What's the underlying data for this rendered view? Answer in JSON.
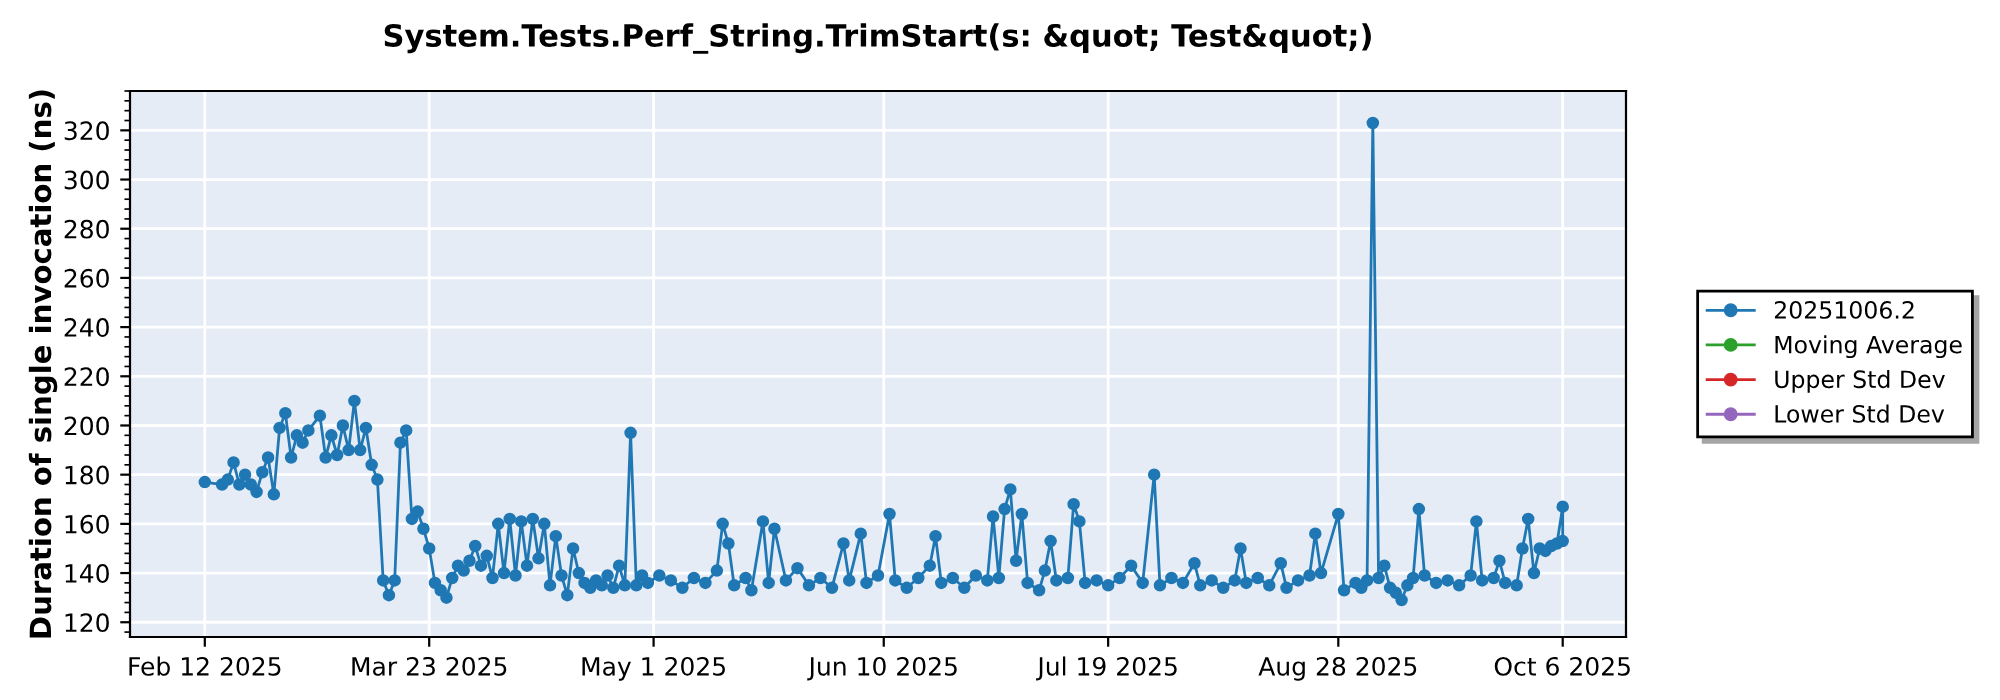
{
  "chart_data": {
    "type": "line",
    "title": "System.Tests.Perf_String.TrimStart(s: &quot; Test&quot;)",
    "ylabel": "Duration of single invocation (ns)",
    "x": [
      "2025-02-12",
      "2025-02-15",
      "2025-02-16",
      "2025-02-17",
      "2025-02-18",
      "2025-02-19",
      "2025-02-20",
      "2025-02-21",
      "2025-02-22",
      "2025-02-23",
      "2025-02-24",
      "2025-02-25",
      "2025-02-26",
      "2025-02-27",
      "2025-02-28",
      "2025-03-01",
      "2025-03-02",
      "2025-03-04",
      "2025-03-05",
      "2025-03-06",
      "2025-03-07",
      "2025-03-08",
      "2025-03-09",
      "2025-03-10",
      "2025-03-11",
      "2025-03-12",
      "2025-03-13",
      "2025-03-14",
      "2025-03-15",
      "2025-03-16",
      "2025-03-17",
      "2025-03-18",
      "2025-03-19",
      "2025-03-20",
      "2025-03-21",
      "2025-03-22",
      "2025-03-23",
      "2025-03-24",
      "2025-03-25",
      "2025-03-26",
      "2025-03-27",
      "2025-03-28",
      "2025-03-29",
      "2025-03-30",
      "2025-03-31",
      "2025-04-01",
      "2025-04-02",
      "2025-04-03",
      "2025-04-04",
      "2025-04-05",
      "2025-04-06",
      "2025-04-07",
      "2025-04-08",
      "2025-04-09",
      "2025-04-10",
      "2025-04-11",
      "2025-04-12",
      "2025-04-13",
      "2025-04-14",
      "2025-04-15",
      "2025-04-16",
      "2025-04-17",
      "2025-04-18",
      "2025-04-19",
      "2025-04-20",
      "2025-04-21",
      "2025-04-22",
      "2025-04-23",
      "2025-04-24",
      "2025-04-25",
      "2025-04-26",
      "2025-04-27",
      "2025-04-28",
      "2025-04-29",
      "2025-04-30",
      "2025-05-02",
      "2025-05-04",
      "2025-05-06",
      "2025-05-08",
      "2025-05-10",
      "2025-05-12",
      "2025-05-13",
      "2025-05-14",
      "2025-05-15",
      "2025-05-17",
      "2025-05-18",
      "2025-05-20",
      "2025-05-21",
      "2025-05-22",
      "2025-05-24",
      "2025-05-26",
      "2025-05-28",
      "2025-05-30",
      "2025-06-01",
      "2025-06-03",
      "2025-06-04",
      "2025-06-06",
      "2025-06-07",
      "2025-06-09",
      "2025-06-11",
      "2025-06-12",
      "2025-06-14",
      "2025-06-16",
      "2025-06-18",
      "2025-06-19",
      "2025-06-20",
      "2025-06-22",
      "2025-06-24",
      "2025-06-26",
      "2025-06-28",
      "2025-06-29",
      "2025-06-30",
      "2025-07-01",
      "2025-07-02",
      "2025-07-03",
      "2025-07-04",
      "2025-07-05",
      "2025-07-07",
      "2025-07-08",
      "2025-07-09",
      "2025-07-10",
      "2025-07-12",
      "2025-07-13",
      "2025-07-14",
      "2025-07-15",
      "2025-07-17",
      "2025-07-19",
      "2025-07-21",
      "2025-07-23",
      "2025-07-25",
      "2025-07-27",
      "2025-07-28",
      "2025-07-30",
      "2025-08-01",
      "2025-08-03",
      "2025-08-04",
      "2025-08-06",
      "2025-08-08",
      "2025-08-10",
      "2025-08-11",
      "2025-08-12",
      "2025-08-14",
      "2025-08-16",
      "2025-08-18",
      "2025-08-19",
      "2025-08-21",
      "2025-08-23",
      "2025-08-24",
      "2025-08-25",
      "2025-08-28",
      "2025-08-29",
      "2025-08-31",
      "2025-09-01",
      "2025-09-02",
      "2025-09-03",
      "2025-09-04",
      "2025-09-05",
      "2025-09-06",
      "2025-09-07",
      "2025-09-08",
      "2025-09-09",
      "2025-09-10",
      "2025-09-11",
      "2025-09-12",
      "2025-09-14",
      "2025-09-16",
      "2025-09-18",
      "2025-09-20",
      "2025-09-21",
      "2025-09-22",
      "2025-09-24",
      "2025-09-25",
      "2025-09-26",
      "2025-09-28",
      "2025-09-29",
      "2025-09-30",
      "2025-10-01",
      "2025-10-02",
      "2025-10-03",
      "2025-10-04",
      "2025-10-05",
      "2025-10-06",
      "2025-10-06"
    ],
    "series": [
      {
        "name": "20251006.2",
        "color": "#1f77b4",
        "values": [
          177,
          176,
          178,
          185,
          176,
          180,
          176,
          173,
          181,
          187,
          172,
          199,
          205,
          187,
          196,
          193,
          198,
          204,
          187,
          196,
          188,
          200,
          190,
          210,
          190,
          199,
          184,
          178,
          137,
          131,
          137,
          193,
          198,
          162,
          165,
          158,
          150,
          136,
          133,
          130,
          138,
          143,
          141,
          145,
          151,
          143,
          147,
          138,
          160,
          140,
          162,
          139,
          161,
          143,
          162,
          146,
          160,
          135,
          155,
          139,
          131,
          150,
          140,
          136,
          134,
          137,
          135,
          139,
          134,
          143,
          135,
          197,
          135,
          139,
          136,
          139,
          137,
          134,
          138,
          136,
          141,
          160,
          152,
          135,
          138,
          133,
          161,
          136,
          158,
          137,
          142,
          135,
          138,
          134,
          152,
          137,
          156,
          136,
          139,
          164,
          137,
          134,
          138,
          143,
          155,
          136,
          138,
          134,
          139,
          137,
          163,
          138,
          166,
          174,
          145,
          164,
          136,
          133,
          141,
          153,
          137,
          138,
          168,
          161,
          136,
          137,
          135,
          138,
          143,
          136,
          180,
          135,
          138,
          136,
          144,
          135,
          137,
          134,
          137,
          150,
          136,
          138,
          135,
          144,
          134,
          137,
          139,
          156,
          140,
          164,
          133,
          136,
          134,
          137,
          323,
          138,
          143,
          134,
          132,
          129,
          135,
          138,
          166,
          139,
          136,
          137,
          135,
          139,
          161,
          137,
          138,
          145,
          136,
          135,
          150,
          162,
          140,
          150,
          149,
          151,
          152,
          167,
          153
        ]
      },
      {
        "name": "Moving Average",
        "color": "#2ca02c",
        "values": [
          null,
          null,
          null,
          null,
          null,
          null,
          null,
          null,
          null,
          null,
          null,
          null,
          null,
          null,
          null,
          null,
          null,
          null,
          null,
          null,
          null,
          null,
          null,
          null,
          null,
          null,
          null,
          null,
          null,
          null,
          null,
          null,
          null,
          null,
          null,
          null,
          null,
          null,
          null,
          null,
          null,
          null,
          null,
          null,
          null,
          null,
          null,
          null,
          null,
          null,
          null,
          null,
          null,
          null,
          null,
          null,
          null,
          null,
          null,
          null,
          null,
          null,
          null,
          null,
          null,
          null,
          null,
          null,
          null,
          null,
          null,
          null,
          null,
          null,
          null,
          null,
          null,
          null,
          null,
          null,
          null,
          null,
          null,
          null,
          null,
          null,
          null,
          null,
          null,
          null,
          null,
          null,
          null,
          null,
          null,
          null,
          null,
          null,
          null,
          null,
          null,
          null,
          null,
          null,
          null,
          null,
          null,
          null,
          null,
          null,
          null,
          null,
          null,
          null,
          null,
          null,
          null,
          null,
          null,
          null,
          null,
          null,
          null,
          null,
          null,
          null,
          null,
          null,
          null,
          null,
          null,
          null,
          null,
          null,
          null,
          null,
          null,
          null,
          null,
          null,
          null,
          null,
          null,
          null,
          null,
          null,
          null,
          null,
          null,
          null,
          null,
          null,
          null,
          null,
          null,
          null,
          null,
          null,
          null,
          null,
          null,
          null,
          null,
          null,
          null,
          null,
          null,
          null,
          null,
          null,
          null,
          null,
          null,
          null,
          null,
          null,
          null,
          null,
          null,
          null,
          null,
          null,
          null
        ]
      },
      {
        "name": "Upper Std Dev",
        "color": "#d62728",
        "values": [
          null,
          null,
          null,
          null,
          null,
          null,
          null,
          null,
          null,
          null,
          null,
          null,
          null,
          null,
          null,
          null,
          null,
          null,
          null,
          null,
          null,
          null,
          null,
          null,
          null,
          null,
          null,
          null,
          null,
          null,
          null,
          null,
          null,
          null,
          null,
          null,
          null,
          null,
          null,
          null,
          null,
          null,
          null,
          null,
          null,
          null,
          null,
          null,
          null,
          null,
          null,
          null,
          null,
          null,
          null,
          null,
          null,
          null,
          null,
          null,
          null,
          null,
          null,
          null,
          null,
          null,
          null,
          null,
          null,
          null,
          null,
          null,
          null,
          null,
          null,
          null,
          null,
          null,
          null,
          null,
          null,
          null,
          null,
          null,
          null,
          null,
          null,
          null,
          null,
          null,
          null,
          null,
          null,
          null,
          null,
          null,
          null,
          null,
          null,
          null,
          null,
          null,
          null,
          null,
          null,
          null,
          null,
          null,
          null,
          null,
          null,
          null,
          null,
          null,
          null,
          null,
          null,
          null,
          null,
          null,
          null,
          null,
          null,
          null,
          null,
          null,
          null,
          null,
          null,
          null,
          null,
          null,
          null,
          null,
          null,
          null,
          null,
          null,
          null,
          null,
          null,
          null,
          null,
          null,
          null,
          null,
          null,
          null,
          null,
          null,
          null,
          null,
          null,
          null,
          null,
          null,
          null,
          null,
          null,
          null,
          null,
          null,
          null,
          null,
          null,
          null,
          null,
          null,
          null,
          null,
          null,
          null,
          null,
          null,
          null,
          null,
          null,
          null,
          null,
          null,
          null,
          null,
          null
        ]
      },
      {
        "name": "Lower Std Dev",
        "color": "#9467bd",
        "values": [
          null,
          null,
          null,
          null,
          null,
          null,
          null,
          null,
          null,
          null,
          null,
          null,
          null,
          null,
          null,
          null,
          null,
          null,
          null,
          null,
          null,
          null,
          null,
          null,
          null,
          null,
          null,
          null,
          null,
          null,
          null,
          null,
          null,
          null,
          null,
          null,
          null,
          null,
          null,
          null,
          null,
          null,
          null,
          null,
          null,
          null,
          null,
          null,
          null,
          null,
          null,
          null,
          null,
          null,
          null,
          null,
          null,
          null,
          null,
          null,
          null,
          null,
          null,
          null,
          null,
          null,
          null,
          null,
          null,
          null,
          null,
          null,
          null,
          null,
          null,
          null,
          null,
          null,
          null,
          null,
          null,
          null,
          null,
          null,
          null,
          null,
          null,
          null,
          null,
          null,
          null,
          null,
          null,
          null,
          null,
          null,
          null,
          null,
          null,
          null,
          null,
          null,
          null,
          null,
          null,
          null,
          null,
          null,
          null,
          null,
          null,
          null,
          null,
          null,
          null,
          null,
          null,
          null,
          null,
          null,
          null,
          null,
          null,
          null,
          null,
          null,
          null,
          null,
          null,
          null,
          null,
          null,
          null,
          null,
          null,
          null,
          null,
          null,
          null,
          null,
          null,
          null,
          null,
          null,
          null,
          null,
          null,
          null,
          null,
          null,
          null,
          null,
          null,
          null,
          null,
          null,
          null,
          null,
          null,
          null,
          null,
          null,
          null,
          null,
          null,
          null,
          null,
          null,
          null,
          null,
          null,
          null,
          null,
          null,
          null,
          null,
          null,
          null,
          null,
          null,
          null,
          null,
          null
        ]
      }
    ],
    "xlim": [
      "2025-01-30",
      "2025-10-17"
    ],
    "xticks": [
      {
        "value": "2025-02-12",
        "label": "Feb 12 2025"
      },
      {
        "value": "2025-03-23",
        "label": "Mar 23 2025"
      },
      {
        "value": "2025-05-01",
        "label": "May 1 2025"
      },
      {
        "value": "2025-06-10",
        "label": "Jun 10 2025"
      },
      {
        "value": "2025-07-19",
        "label": "Jul 19 2025"
      },
      {
        "value": "2025-08-28",
        "label": "Aug 28 2025"
      },
      {
        "value": "2025-10-06",
        "label": "Oct 6 2025"
      }
    ],
    "ylim": [
      114,
      336
    ],
    "yticks": [
      120,
      140,
      160,
      180,
      200,
      220,
      240,
      260,
      280,
      300,
      320
    ],
    "grid": true,
    "legend": "right",
    "marker": "circle",
    "line_style": "solid"
  }
}
